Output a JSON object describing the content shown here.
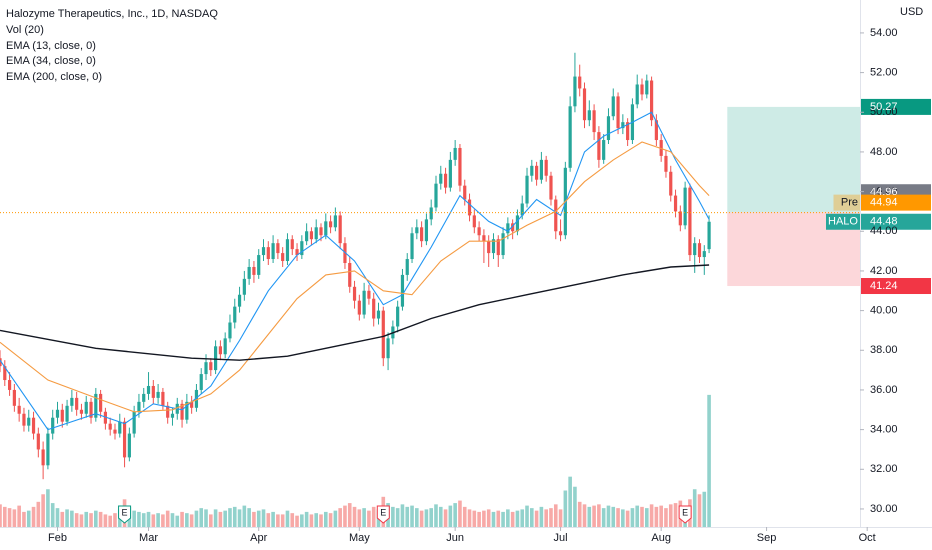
{
  "chart_data": {
    "type": "candlestick",
    "title": "Halozyme Therapeutics, Inc., 1D, NASDAQ",
    "volume_label": "Vol (20)",
    "currency": "USD",
    "up_color": "#26a69a",
    "down_color": "#ef5350",
    "xlim": [
      0,
      179.5
    ],
    "xticks": [
      {
        "value": 12,
        "label": "Feb"
      },
      {
        "value": 31,
        "label": "Mar"
      },
      {
        "value": 54,
        "label": "Apr"
      },
      {
        "value": 75,
        "label": "May"
      },
      {
        "value": 95,
        "label": "Jun"
      },
      {
        "value": 117,
        "label": "Jul"
      },
      {
        "value": 138,
        "label": "Aug"
      },
      {
        "value": 160,
        "label": "Sep"
      },
      {
        "value": 181,
        "label": "Oct"
      }
    ],
    "ylim": [
      29.09,
      55.66
    ],
    "yticks": [
      {
        "value": 30,
        "label": "30.00"
      },
      {
        "value": 32,
        "label": "32.00"
      },
      {
        "value": 34,
        "label": "34.00"
      },
      {
        "value": 36,
        "label": "36.00"
      },
      {
        "value": 38,
        "label": "38.00"
      },
      {
        "value": 40,
        "label": "40.00"
      },
      {
        "value": 42,
        "label": "42.00"
      },
      {
        "value": 44,
        "label": "44.00"
      },
      {
        "value": 46,
        "label": "46.00"
      },
      {
        "value": 48,
        "label": "48.00"
      },
      {
        "value": 50,
        "label": "50.00"
      },
      {
        "value": 52,
        "label": "52.00"
      },
      {
        "value": 54,
        "label": "54.00"
      }
    ],
    "volume_ylim": [
      0,
      12
    ],
    "ohlc": [
      [
        37.6,
        38.0,
        36.9,
        37.2
      ],
      [
        37.2,
        37.5,
        36.2,
        36.5
      ],
      [
        36.5,
        36.9,
        35.7,
        36.0
      ],
      [
        36.0,
        36.3,
        34.9,
        35.2
      ],
      [
        35.2,
        35.6,
        34.4,
        34.8
      ],
      [
        34.8,
        35.1,
        33.9,
        34.2
      ],
      [
        34.2,
        35.0,
        33.9,
        34.6
      ],
      [
        34.6,
        34.9,
        33.5,
        33.8
      ],
      [
        33.8,
        34.1,
        32.6,
        33.0
      ],
      [
        33.0,
        33.4,
        31.5,
        32.2
      ],
      [
        32.2,
        34.1,
        32.0,
        33.8
      ],
      [
        33.8,
        35.0,
        33.5,
        34.6
      ],
      [
        34.6,
        35.4,
        34.3,
        35.0
      ],
      [
        35.0,
        35.3,
        34.1,
        34.4
      ],
      [
        34.4,
        35.5,
        34.2,
        35.2
      ],
      [
        35.2,
        36.0,
        34.9,
        35.6
      ],
      [
        35.6,
        35.9,
        34.7,
        35.0
      ],
      [
        35.0,
        35.3,
        34.5,
        34.8
      ],
      [
        34.8,
        35.7,
        34.6,
        35.4
      ],
      [
        35.4,
        35.6,
        34.3,
        34.6
      ],
      [
        34.6,
        36.1,
        34.4,
        35.8
      ],
      [
        35.8,
        36.0,
        34.6,
        34.9
      ],
      [
        34.9,
        35.1,
        34.0,
        34.3
      ],
      [
        34.3,
        34.6,
        33.7,
        34.0
      ],
      [
        34.0,
        34.3,
        33.5,
        33.8
      ],
      [
        33.8,
        34.8,
        33.6,
        34.4
      ],
      [
        34.4,
        34.6,
        32.1,
        32.6
      ],
      [
        32.6,
        34.1,
        32.4,
        33.8
      ],
      [
        33.8,
        35.2,
        33.6,
        34.9
      ],
      [
        34.9,
        35.8,
        34.6,
        35.4
      ],
      [
        35.4,
        36.1,
        35.1,
        35.8
      ],
      [
        35.8,
        36.9,
        35.5,
        36.2
      ],
      [
        36.2,
        36.5,
        35.3,
        35.6
      ],
      [
        35.6,
        36.3,
        35.3,
        35.9
      ],
      [
        35.9,
        36.1,
        35.0,
        35.2
      ],
      [
        35.2,
        35.4,
        34.3,
        34.6
      ],
      [
        34.6,
        35.1,
        34.2,
        34.8
      ],
      [
        34.8,
        35.6,
        34.5,
        35.3
      ],
      [
        35.3,
        35.5,
        34.1,
        34.5
      ],
      [
        34.5,
        35.8,
        34.3,
        35.4
      ],
      [
        35.4,
        35.7,
        34.8,
        35.1
      ],
      [
        35.1,
        36.3,
        34.9,
        36.0
      ],
      [
        36.0,
        37.1,
        35.8,
        36.8
      ],
      [
        36.8,
        37.8,
        36.5,
        37.4
      ],
      [
        37.4,
        37.6,
        36.7,
        37.0
      ],
      [
        37.0,
        38.5,
        36.8,
        38.2
      ],
      [
        38.2,
        38.5,
        37.5,
        37.8
      ],
      [
        37.8,
        38.9,
        37.6,
        38.6
      ],
      [
        38.6,
        39.8,
        38.4,
        39.4
      ],
      [
        39.4,
        40.6,
        39.1,
        40.2
      ],
      [
        40.2,
        41.2,
        39.9,
        40.8
      ],
      [
        40.8,
        42.0,
        40.5,
        41.6
      ],
      [
        41.6,
        42.6,
        41.3,
        42.2
      ],
      [
        42.2,
        42.5,
        41.4,
        41.8
      ],
      [
        41.8,
        43.1,
        41.6,
        42.8
      ],
      [
        42.8,
        43.6,
        42.5,
        43.2
      ],
      [
        43.2,
        43.5,
        42.3,
        42.6
      ],
      [
        42.6,
        43.8,
        42.4,
        43.4
      ],
      [
        43.4,
        43.6,
        42.6,
        42.9
      ],
      [
        42.9,
        43.2,
        42.2,
        42.5
      ],
      [
        42.5,
        43.9,
        42.3,
        43.6
      ],
      [
        43.6,
        43.8,
        42.8,
        43.1
      ],
      [
        43.1,
        43.4,
        42.5,
        42.8
      ],
      [
        42.8,
        43.8,
        42.6,
        43.5
      ],
      [
        43.5,
        44.4,
        43.3,
        44.0
      ],
      [
        44.0,
        44.2,
        43.3,
        43.6
      ],
      [
        43.6,
        44.6,
        43.4,
        44.2
      ],
      [
        44.2,
        44.4,
        43.5,
        43.8
      ],
      [
        43.8,
        44.9,
        43.6,
        44.5
      ],
      [
        44.5,
        44.8,
        43.9,
        44.2
      ],
      [
        44.2,
        45.2,
        44.0,
        44.8
      ],
      [
        44.8,
        45.0,
        43.1,
        43.4
      ],
      [
        43.4,
        43.7,
        42.1,
        42.4
      ],
      [
        42.4,
        42.7,
        40.9,
        41.2
      ],
      [
        41.2,
        41.5,
        40.1,
        40.5
      ],
      [
        40.5,
        40.8,
        39.5,
        39.8
      ],
      [
        39.8,
        41.4,
        39.6,
        41.0
      ],
      [
        41.0,
        41.3,
        40.3,
        40.6
      ],
      [
        40.6,
        40.9,
        39.2,
        39.6
      ],
      [
        39.6,
        40.4,
        39.3,
        40.0
      ],
      [
        40.0,
        40.2,
        37.2,
        37.6
      ],
      [
        37.6,
        38.9,
        37.0,
        38.6
      ],
      [
        38.6,
        39.5,
        38.3,
        39.2
      ],
      [
        39.2,
        40.5,
        38.9,
        40.2
      ],
      [
        40.2,
        42.1,
        40.0,
        41.8
      ],
      [
        41.8,
        42.9,
        41.5,
        42.6
      ],
      [
        42.6,
        44.2,
        42.4,
        43.9
      ],
      [
        43.9,
        44.6,
        43.6,
        44.2
      ],
      [
        44.2,
        44.5,
        43.2,
        43.5
      ],
      [
        43.5,
        44.9,
        43.3,
        44.6
      ],
      [
        44.6,
        45.6,
        44.3,
        45.2
      ],
      [
        45.2,
        46.8,
        45.0,
        46.4
      ],
      [
        46.4,
        47.3,
        46.1,
        46.9
      ],
      [
        46.9,
        47.2,
        45.9,
        46.2
      ],
      [
        46.2,
        48.0,
        46.0,
        47.6
      ],
      [
        47.6,
        48.6,
        47.3,
        48.2
      ],
      [
        48.2,
        48.4,
        46.0,
        46.3
      ],
      [
        46.3,
        46.6,
        45.3,
        45.6
      ],
      [
        45.6,
        45.9,
        44.5,
        44.8
      ],
      [
        44.8,
        45.1,
        43.9,
        44.2
      ],
      [
        44.2,
        44.5,
        43.5,
        43.8
      ],
      [
        43.8,
        44.1,
        42.4,
        43.5
      ],
      [
        43.5,
        43.8,
        42.2,
        42.9
      ],
      [
        42.9,
        43.9,
        42.6,
        43.6
      ],
      [
        43.6,
        43.8,
        42.2,
        42.8
      ],
      [
        42.8,
        44.2,
        42.6,
        43.9
      ],
      [
        43.9,
        44.7,
        43.6,
        44.4
      ],
      [
        44.4,
        44.6,
        43.6,
        44.0
      ],
      [
        44.0,
        45.1,
        43.8,
        44.8
      ],
      [
        44.8,
        45.8,
        44.6,
        45.4
      ],
      [
        45.4,
        47.2,
        45.2,
        46.8
      ],
      [
        46.8,
        47.6,
        46.5,
        47.3
      ],
      [
        47.3,
        47.5,
        46.3,
        46.6
      ],
      [
        46.6,
        48.0,
        46.4,
        47.6
      ],
      [
        47.6,
        47.8,
        46.5,
        46.8
      ],
      [
        46.8,
        47.0,
        45.3,
        45.6
      ],
      [
        45.6,
        45.8,
        43.6,
        44.0
      ],
      [
        44.0,
        44.6,
        43.5,
        43.8
      ],
      [
        43.8,
        47.5,
        43.6,
        47.2
      ],
      [
        47.2,
        50.8,
        47.0,
        50.3
      ],
      [
        50.3,
        53.0,
        50.0,
        51.8
      ],
      [
        51.8,
        52.4,
        50.8,
        51.2
      ],
      [
        51.2,
        51.5,
        49.2,
        49.6
      ],
      [
        49.6,
        50.6,
        49.3,
        50.1
      ],
      [
        50.1,
        50.4,
        48.6,
        49.0
      ],
      [
        49.0,
        49.3,
        47.2,
        47.6
      ],
      [
        47.6,
        48.9,
        47.4,
        48.6
      ],
      [
        48.6,
        50.2,
        48.4,
        49.8
      ],
      [
        49.8,
        51.2,
        49.6,
        50.8
      ],
      [
        50.8,
        51.0,
        48.9,
        49.2
      ],
      [
        49.2,
        49.9,
        48.9,
        49.5
      ],
      [
        49.5,
        49.7,
        48.3,
        48.6
      ],
      [
        48.6,
        50.7,
        48.4,
        50.4
      ],
      [
        50.4,
        51.9,
        50.2,
        51.4
      ],
      [
        51.4,
        51.7,
        50.6,
        50.9
      ],
      [
        50.9,
        51.9,
        50.7,
        51.6
      ],
      [
        51.6,
        51.8,
        49.3,
        49.6
      ],
      [
        49.6,
        49.9,
        48.3,
        48.6
      ],
      [
        48.6,
        48.9,
        47.5,
        47.8
      ],
      [
        47.8,
        48.1,
        46.7,
        47.0
      ],
      [
        47.0,
        47.3,
        45.5,
        45.8
      ],
      [
        45.8,
        46.1,
        44.7,
        45.0
      ],
      [
        45.0,
        45.3,
        44.0,
        44.3
      ],
      [
        44.3,
        46.5,
        44.1,
        46.2
      ],
      [
        46.2,
        46.4,
        42.5,
        42.8
      ],
      [
        42.8,
        43.7,
        41.9,
        43.4
      ],
      [
        43.4,
        43.6,
        42.4,
        42.7
      ],
      [
        42.7,
        43.3,
        41.8,
        43.0
      ],
      [
        43.1,
        44.8,
        42.9,
        44.48
      ]
    ],
    "volume": [
      1.8,
      1.6,
      1.5,
      1.4,
      1.7,
      1.2,
      1.3,
      1.6,
      2.0,
      2.6,
      3.0,
      1.9,
      1.5,
      1.2,
      1.4,
      1.3,
      1.1,
      1.0,
      1.2,
      1.1,
      1.3,
      1.2,
      1.0,
      0.9,
      1.1,
      1.4,
      2.2,
      1.6,
      1.3,
      1.2,
      1.1,
      1.2,
      1.0,
      1.1,
      1.0,
      1.3,
      1.1,
      0.9,
      1.2,
      1.1,
      1.0,
      1.3,
      1.5,
      1.4,
      1.0,
      1.4,
      1.2,
      1.3,
      1.5,
      1.6,
      1.4,
      1.7,
      1.5,
      1.2,
      1.3,
      1.4,
      1.1,
      1.2,
      1.0,
      1.0,
      1.3,
      1.1,
      0.9,
      1.0,
      1.2,
      1.0,
      1.1,
      1.0,
      1.2,
      1.1,
      1.3,
      1.5,
      1.7,
      1.9,
      1.6,
      1.4,
      1.5,
      1.3,
      1.6,
      1.4,
      2.4,
      1.9,
      1.6,
      1.5,
      1.8,
      1.6,
      1.7,
      1.5,
      1.3,
      1.4,
      1.5,
      1.8,
      1.6,
      1.4,
      1.7,
      1.9,
      2.1,
      1.6,
      1.4,
      1.3,
      1.2,
      1.3,
      1.4,
      1.2,
      1.3,
      1.2,
      1.4,
      1.2,
      1.3,
      1.4,
      1.7,
      1.5,
      1.3,
      1.6,
      1.4,
      1.5,
      1.8,
      1.4,
      2.9,
      4.0,
      3.2,
      2.0,
      1.8,
      1.6,
      1.7,
      1.8,
      1.5,
      1.7,
      1.6,
      1.5,
      1.4,
      1.3,
      1.5,
      1.7,
      1.6,
      1.5,
      1.8,
      1.6,
      1.7,
      1.5,
      1.8,
      1.9,
      2.1,
      1.7,
      2.2,
      3.0,
      2.6,
      2.8,
      10.5
    ],
    "series": [
      {
        "name": "EMA (13, close, 0)",
        "color": "#2196f3",
        "x": [
          0,
          10,
          20,
          26,
          32,
          38,
          44,
          50,
          56,
          62,
          68,
          74,
          80,
          84,
          90,
          96,
          102,
          106,
          112,
          117,
          122,
          126,
          132,
          136,
          141,
          146,
          148
        ],
        "values": [
          37.5,
          34.0,
          34.8,
          34.3,
          35.3,
          35.0,
          36.2,
          38.5,
          41.0,
          42.8,
          43.8,
          42.5,
          40.3,
          40.8,
          43.2,
          45.8,
          44.5,
          44.0,
          45.6,
          44.8,
          48.0,
          48.8,
          49.5,
          50.0,
          47.6,
          45.5,
          44.6
        ]
      },
      {
        "name": "EMA (34, close, 0)",
        "color": "#f59b42",
        "x": [
          0,
          10,
          20,
          28,
          36,
          44,
          50,
          56,
          62,
          68,
          74,
          80,
          86,
          92,
          98,
          104,
          110,
          116,
          122,
          128,
          134,
          140,
          146,
          148
        ],
        "values": [
          38.4,
          36.5,
          35.6,
          34.9,
          35.0,
          35.8,
          37.0,
          38.8,
          40.6,
          41.8,
          42.0,
          41.0,
          40.8,
          42.5,
          43.5,
          43.5,
          44.3,
          45.0,
          46.5,
          47.6,
          48.5,
          48.0,
          46.3,
          45.8
        ]
      },
      {
        "name": "EMA (200, close, 0)",
        "color": "#131722",
        "x": [
          0,
          20,
          40,
          50,
          60,
          70,
          80,
          90,
          100,
          110,
          120,
          130,
          140,
          148
        ],
        "values": [
          39.0,
          38.1,
          37.6,
          37.5,
          37.7,
          38.2,
          38.7,
          39.6,
          40.3,
          40.8,
          41.3,
          41.8,
          42.2,
          42.3
        ]
      }
    ],
    "position": {
      "x": [
        151.8,
        179.5
      ],
      "entry": 44.96,
      "target": 50.27,
      "stop": 41.24
    },
    "events": [
      {
        "x": 26,
        "label": "E"
      },
      {
        "x": 80,
        "label": "E"
      },
      {
        "x": 143,
        "label": "E"
      }
    ],
    "price_labels": [
      {
        "value": 50.27,
        "color": "#089981"
      },
      {
        "value": 44.96,
        "color": "#787b86"
      },
      {
        "name": "Pre",
        "value": 44.94,
        "color": "#ff9800"
      },
      {
        "name": "HALO",
        "value": 44.48,
        "color": "#26a69a"
      },
      {
        "value": 41.24,
        "color": "#f23645"
      }
    ]
  }
}
